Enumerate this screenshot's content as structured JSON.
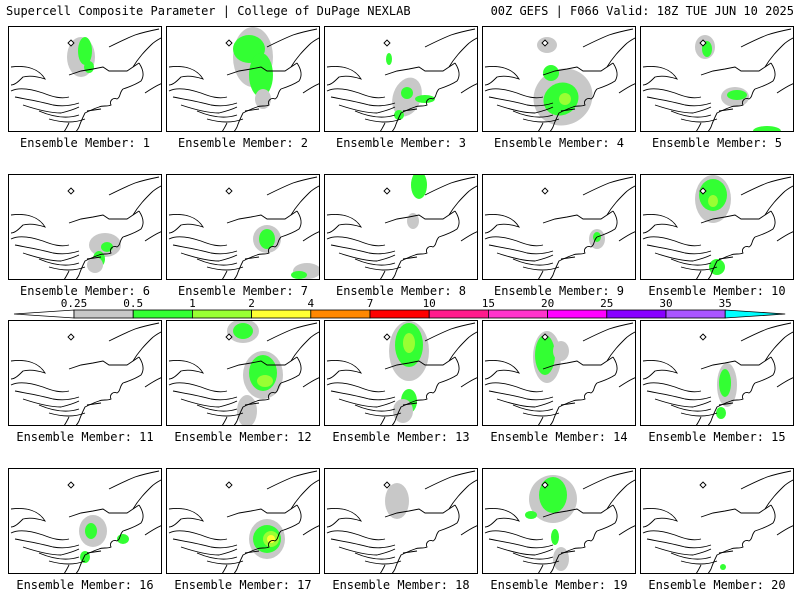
{
  "header": {
    "title": "Supercell Composite Parameter | College of DuPage NEXLAB",
    "run_info": "00Z GEFS | F066 Valid: 18Z TUE JUN 10 2025"
  },
  "caption_prefix": "Ensemble Member:",
  "members": [
    "1",
    "2",
    "3",
    "4",
    "5",
    "6",
    "7",
    "8",
    "9",
    "10",
    "11",
    "12",
    "13",
    "14",
    "15",
    "16",
    "17",
    "18",
    "19",
    "20"
  ],
  "colorbar": {
    "levels": [
      "0.25",
      "0.5",
      "1",
      "2",
      "4",
      "7",
      "10",
      "15",
      "20",
      "25",
      "30",
      "35"
    ],
    "colors": [
      "#c8c8c8",
      "#33ff33",
      "#99ff33",
      "#ffff33",
      "#ff8800",
      "#ff0000",
      "#ff1a8c",
      "#ff33cc",
      "#ff00ff",
      "#8800ff",
      "#aa55ff",
      "#00ffff"
    ]
  },
  "shade_colors": {
    "light": "#c8c8c8",
    "green": "#33ff33",
    "lime": "#99ff33",
    "yellow": "#ffff33"
  }
}
